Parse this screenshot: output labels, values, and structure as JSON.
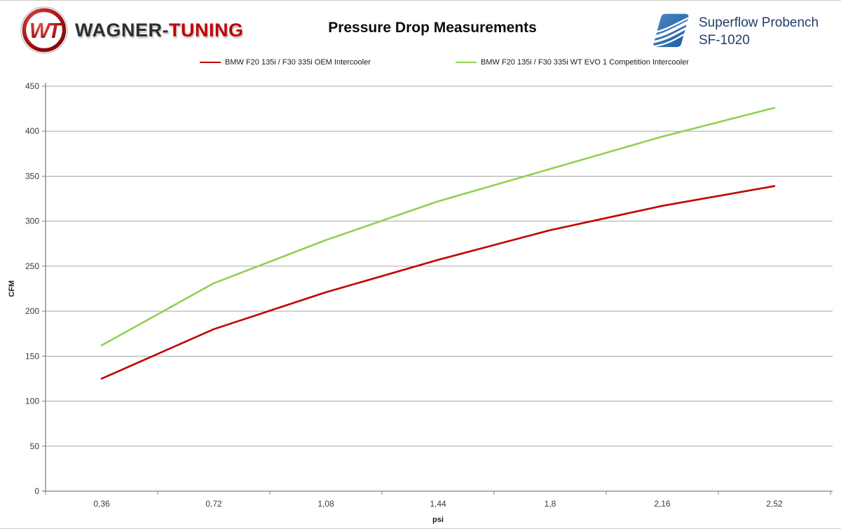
{
  "header": {
    "brand": {
      "monogram": "WT",
      "wordmark_dark": "WAGNER-",
      "wordmark_red": "TUNING"
    },
    "title": "Pressure Drop Measurements",
    "superflow": {
      "line1": "Superflow Probench",
      "line2": "SF-1020"
    }
  },
  "chart_data": {
    "type": "line",
    "title": "Pressure Drop Measurements",
    "x": [
      0.36,
      0.72,
      1.08,
      1.44,
      1.8,
      2.16,
      2.52
    ],
    "categories": [
      "0,36",
      "0,72",
      "1,08",
      "1,44",
      "1,8",
      "2,16",
      "2,52"
    ],
    "series": [
      {
        "name": "BMW F20 135i / F30 335i OEM Intercooler",
        "color": "#C00000",
        "values": [
          125,
          180,
          221,
          257,
          290,
          317,
          339
        ]
      },
      {
        "name": "BMW F20 135i / F30 335i WT EVO 1 Competition Intercooler",
        "color": "#92D050",
        "values": [
          162,
          231,
          279,
          322,
          358,
          394,
          426
        ]
      }
    ],
    "xlabel": "psi",
    "ylabel": "CFM",
    "ylim": [
      0,
      450
    ],
    "ytick_step": 50,
    "grid": true,
    "legend_position": "top",
    "gridline_color": "#A6A6A6",
    "axis_color": "#808080"
  }
}
